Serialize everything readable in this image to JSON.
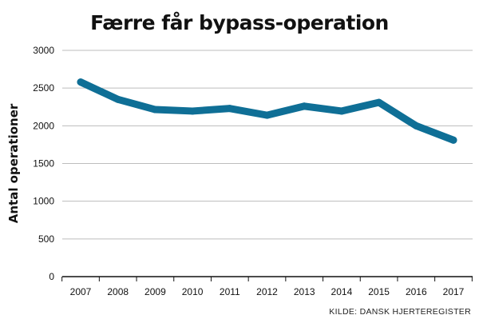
{
  "chart_data": {
    "type": "line",
    "title": "Færre får bypass-operation",
    "xlabel": "",
    "ylabel": "Antal operationer",
    "x": [
      "2007",
      "2008",
      "2009",
      "2010",
      "2011",
      "2012",
      "2013",
      "2014",
      "2015",
      "2016",
      "2017"
    ],
    "series": [
      {
        "name": "Antal operationer",
        "values": [
          2580,
          2350,
          2215,
          2195,
          2230,
          2140,
          2260,
          2195,
          2310,
          2000,
          1810
        ]
      }
    ],
    "ylim": [
      0,
      3000
    ],
    "yticks": [
      0,
      500,
      1000,
      1500,
      2000,
      2500,
      3000
    ],
    "grid": true,
    "line_color": "#0f6f96",
    "source": "KILDE: DANSK HJERTEREGISTER"
  }
}
